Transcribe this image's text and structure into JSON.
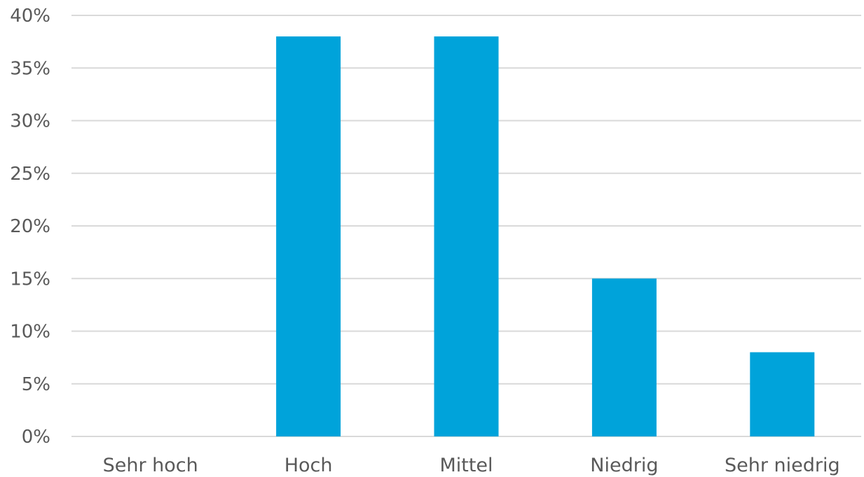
{
  "chart_data": {
    "type": "bar",
    "categories": [
      "Sehr hoch",
      "Hoch",
      "Mittel",
      "Niedrig",
      "Sehr niedrig"
    ],
    "values": [
      0,
      38,
      38,
      15,
      8
    ],
    "title": "",
    "xlabel": "",
    "ylabel": "",
    "ylim": [
      0,
      40
    ],
    "yticks": [
      0,
      5,
      10,
      15,
      20,
      25,
      30,
      35,
      40
    ],
    "ytick_labels": [
      "0%",
      "5%",
      "10%",
      "15%",
      "20%",
      "25%",
      "30%",
      "35%",
      "40%"
    ],
    "value_unit": "%",
    "grid": true,
    "legend": "none",
    "bar_color": "#00a3da",
    "grid_color": "#d9d9d9",
    "label_color": "#595959"
  }
}
